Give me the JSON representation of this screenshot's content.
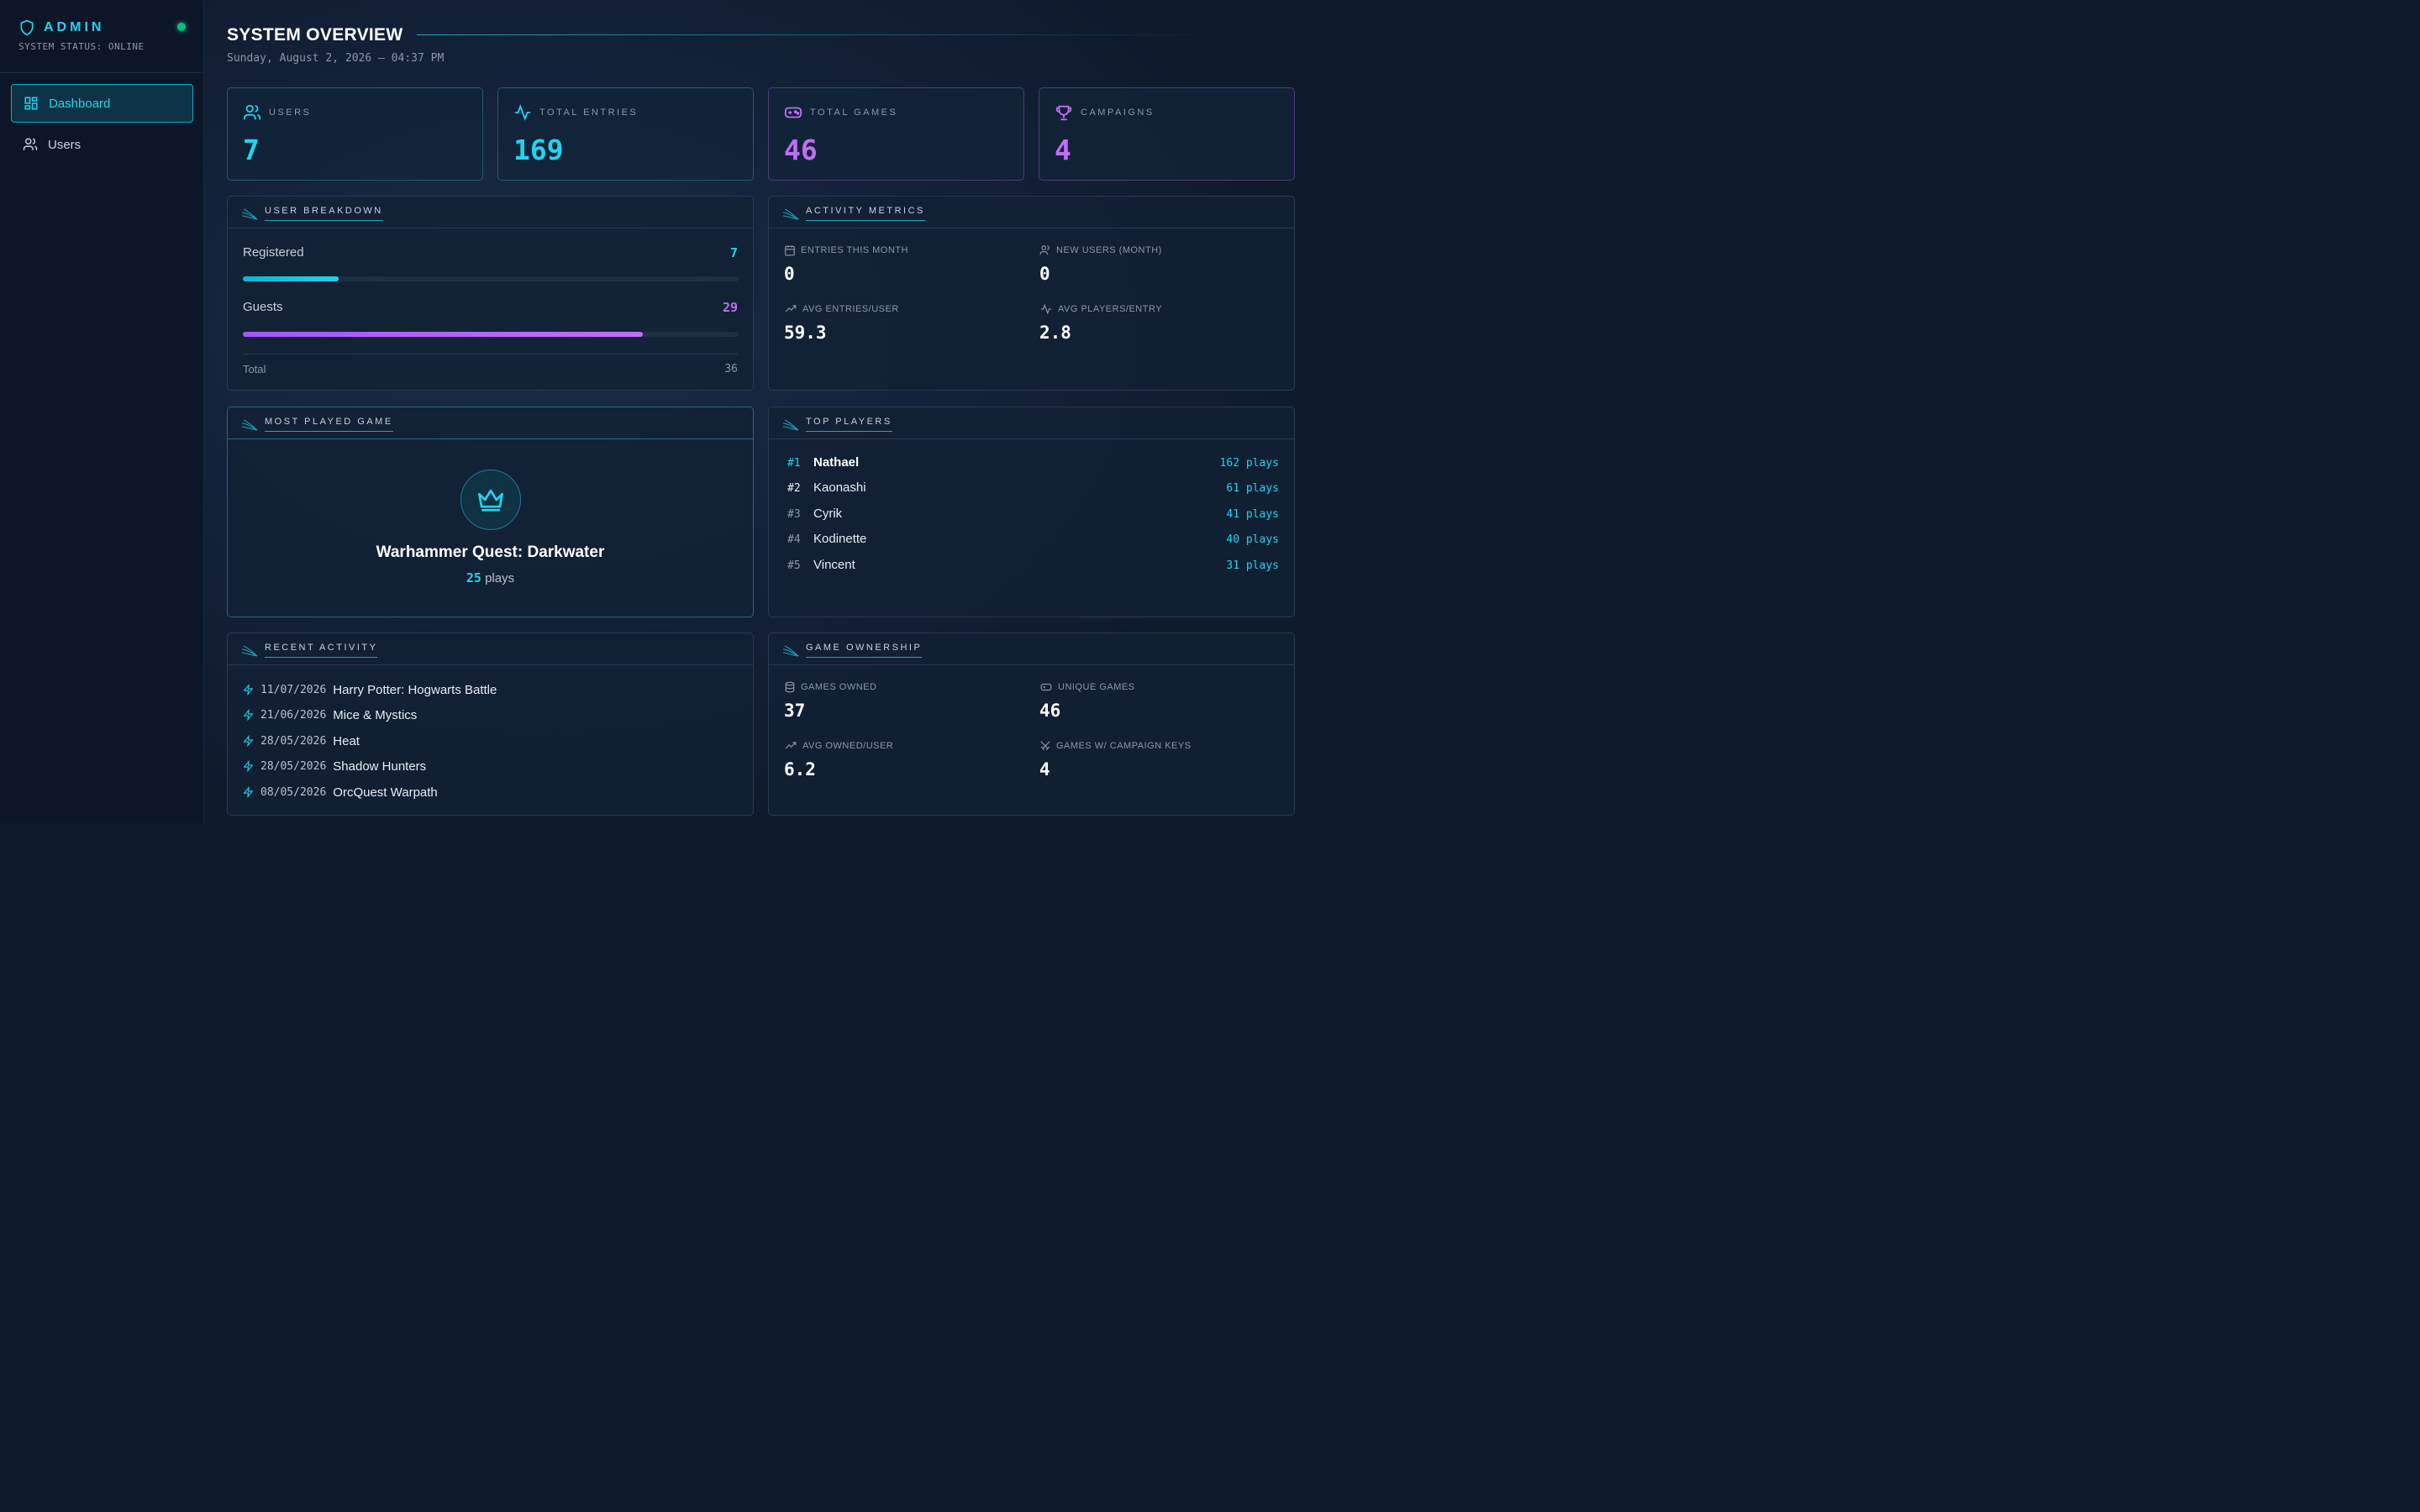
{
  "sidebar": {
    "title": "ADMIN",
    "status": "SYSTEM STATUS: ONLINE",
    "nav": [
      {
        "label": "Dashboard",
        "icon": "dashboard-icon",
        "active": true
      },
      {
        "label": "Users",
        "icon": "users-icon",
        "active": false
      }
    ]
  },
  "header": {
    "title": "SYSTEM OVERVIEW",
    "date": "Sunday, August 2, 2026 — 04:37 PM"
  },
  "stats": [
    {
      "label": "USERS",
      "value": "7",
      "icon": "users-icon",
      "color": "#22d3ee"
    },
    {
      "label": "TOTAL ENTRIES",
      "value": "169",
      "icon": "activity-icon",
      "color": "#22d3ee"
    },
    {
      "label": "TOTAL GAMES",
      "value": "46",
      "icon": "gamepad-icon",
      "color": "#c06ef5"
    },
    {
      "label": "CAMPAIGNS",
      "value": "4",
      "icon": "trophy-icon",
      "color": "#c06ef5"
    }
  ],
  "user_breakdown": {
    "title": "USER BREAKDOWN",
    "registered_label": "Registered",
    "registered_value": "7",
    "registered_fraction": 0.194,
    "guests_label": "Guests",
    "guests_value": "29",
    "guests_fraction": 0.806,
    "total_label": "Total",
    "total_value": "36"
  },
  "activity_metrics": {
    "title": "ACTIVITY METRICS",
    "items": [
      {
        "label": "ENTRIES THIS MONTH",
        "value": "0",
        "icon": "calendar-icon"
      },
      {
        "label": "NEW USERS (MONTH)",
        "value": "0",
        "icon": "users-icon"
      },
      {
        "label": "AVG ENTRIES/USER",
        "value": "59.3",
        "icon": "trending-up-icon"
      },
      {
        "label": "AVG PLAYERS/ENTRY",
        "value": "2.8",
        "icon": "activity-icon"
      }
    ]
  },
  "most_played": {
    "title": "MOST PLAYED GAME",
    "game": "Warhammer Quest: Darkwater",
    "plays_count": "25",
    "plays_label": "plays"
  },
  "top_players": {
    "title": "TOP PLAYERS",
    "players": [
      {
        "rank": "#1",
        "name": "Nathael",
        "plays": "162 plays"
      },
      {
        "rank": "#2",
        "name": "Kaonashi",
        "plays": "61 plays"
      },
      {
        "rank": "#3",
        "name": "Cyrik",
        "plays": "41 plays"
      },
      {
        "rank": "#4",
        "name": "Kodinette",
        "plays": "40 plays"
      },
      {
        "rank": "#5",
        "name": "Vincent",
        "plays": "31 plays"
      }
    ]
  },
  "recent_activity": {
    "title": "RECENT ACTIVITY",
    "items": [
      {
        "date": "11/07/2026",
        "game": "Harry Potter: Hogwarts Battle"
      },
      {
        "date": "21/06/2026",
        "game": "Mice & Mystics"
      },
      {
        "date": "28/05/2026",
        "game": "Heat"
      },
      {
        "date": "28/05/2026",
        "game": "Shadow Hunters"
      },
      {
        "date": "08/05/2026",
        "game": "OrcQuest Warpath"
      }
    ]
  },
  "game_ownership": {
    "title": "GAME OWNERSHIP",
    "items": [
      {
        "label": "GAMES OWNED",
        "value": "37",
        "icon": "database-icon"
      },
      {
        "label": "UNIQUE GAMES",
        "value": "46",
        "icon": "gamepad-icon"
      },
      {
        "label": "AVG OWNED/USER",
        "value": "6.2",
        "icon": "trending-up-icon"
      },
      {
        "label": "GAMES W/ CAMPAIGN KEYS",
        "value": "4",
        "icon": "swords-icon"
      }
    ]
  },
  "colors": {
    "accent": "#22d3ee",
    "purple": "#c06ef5",
    "online": "#10b981"
  }
}
